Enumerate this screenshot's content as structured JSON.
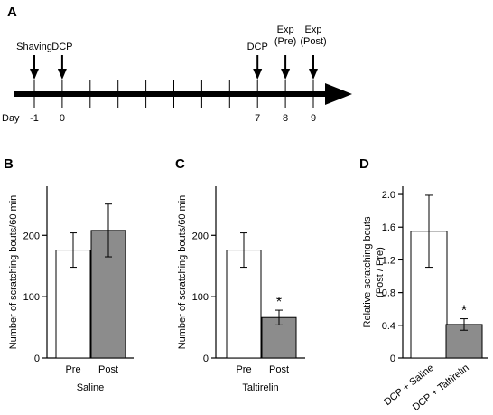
{
  "panel_a": {
    "letter": "A",
    "day_label": "Day",
    "events": [
      {
        "label": "Shaving",
        "day": -1
      },
      {
        "label": "DCP",
        "day": 0
      },
      {
        "label": "DCP",
        "day": 7
      },
      {
        "label": "Exp\n(Pre)",
        "day": 8
      },
      {
        "label": "Exp\n(Post)",
        "day": 9
      }
    ],
    "day_ticks": [
      -1,
      0,
      1,
      2,
      3,
      4,
      5,
      6,
      7,
      8,
      9
    ],
    "day_tick_labels": [
      {
        "day": -1,
        "text": "-1"
      },
      {
        "day": 0,
        "text": "0"
      },
      {
        "day": 7,
        "text": "7"
      },
      {
        "day": 8,
        "text": "8"
      },
      {
        "day": 9,
        "text": "9"
      }
    ]
  },
  "chart_data": [
    {
      "panel": "B",
      "type": "bar",
      "categories": [
        "Pre",
        "Post"
      ],
      "values": [
        176,
        208
      ],
      "errors": [
        28,
        43
      ],
      "colors": [
        "#ffffff",
        "#8c8c8c"
      ],
      "xlabel": "Saline",
      "ylabel": "Number of scratching bouts/60 min",
      "ylim": [
        0,
        280
      ],
      "yticks": [
        0,
        100,
        200
      ],
      "significance": [
        "",
        ""
      ]
    },
    {
      "panel": "C",
      "type": "bar",
      "categories": [
        "Pre",
        "Post"
      ],
      "values": [
        176,
        66
      ],
      "errors": [
        28,
        12
      ],
      "colors": [
        "#ffffff",
        "#8c8c8c"
      ],
      "xlabel": "Taltirelin",
      "ylabel": "Number of scratching bouts/60 min",
      "ylim": [
        0,
        280
      ],
      "yticks": [
        0,
        100,
        200
      ],
      "significance": [
        "",
        "*"
      ]
    },
    {
      "panel": "D",
      "type": "bar",
      "categories": [
        "DCP + Saline",
        "DCP + Taltirelin"
      ],
      "values": [
        1.55,
        0.41
      ],
      "errors": [
        0.44,
        0.07
      ],
      "colors": [
        "#ffffff",
        "#8c8c8c"
      ],
      "xlabel": "",
      "ylabel": "Relative scratching bouts\n(Post / Pre)",
      "ylim": [
        0,
        2.1
      ],
      "yticks": [
        0,
        0.4,
        0.8,
        1.2,
        1.6,
        2.0
      ],
      "ytick_labels": [
        "0",
        "0.4",
        "0.8",
        "1.2",
        "1.6",
        "2.0"
      ],
      "significance": [
        "",
        "*"
      ]
    }
  ]
}
